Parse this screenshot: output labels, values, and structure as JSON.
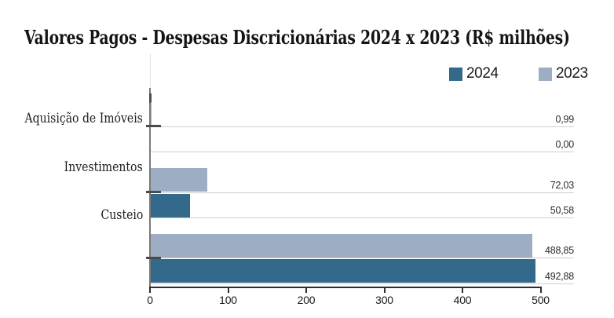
{
  "title": "Valores Pagos - Despesas Discricionárias 2024 x 2023 (R$ milhões)",
  "legend": {
    "items": [
      {
        "label": "2024",
        "color": "#336a8c"
      },
      {
        "label": "2023",
        "color": "#9daec4"
      }
    ]
  },
  "chart_data": {
    "type": "bar",
    "orientation": "horizontal",
    "title": "Valores Pagos - Despesas Discricionárias 2024 x 2023 (R$ milhões)",
    "categories": [
      "Aquisição de Imóveis",
      "Investimentos",
      "Custeio"
    ],
    "series": [
      {
        "name": "2024",
        "color": "#336a8c",
        "values": [
          0.0,
          50.58,
          492.88
        ],
        "value_labels": [
          "0,00",
          "50,58",
          "492,88"
        ]
      },
      {
        "name": "2023",
        "color": "#9daec4",
        "values": [
          0.99,
          72.03,
          488.85
        ],
        "value_labels": [
          "0,99",
          "72,03",
          "488,85"
        ]
      }
    ],
    "bar_order_within_group": [
      "2023",
      "2024"
    ],
    "xlim": [
      0,
      500
    ],
    "xticks": [
      0,
      100,
      200,
      300,
      400,
      500
    ],
    "xtick_labels": [
      "0",
      "100",
      "200",
      "300",
      "400",
      "500"
    ],
    "grid": "horizontal row separator lines only",
    "legend_position": "top-right",
    "value_label_position": "right edge of plot, above each row line"
  },
  "colors": {
    "grid": "#cfcfcf",
    "x_axis": "#2e2e2e",
    "y_axis": "#7a7a7a",
    "category_tick": "#4a4a4a",
    "text": "#1a1a1a",
    "background": "#ffffff"
  }
}
